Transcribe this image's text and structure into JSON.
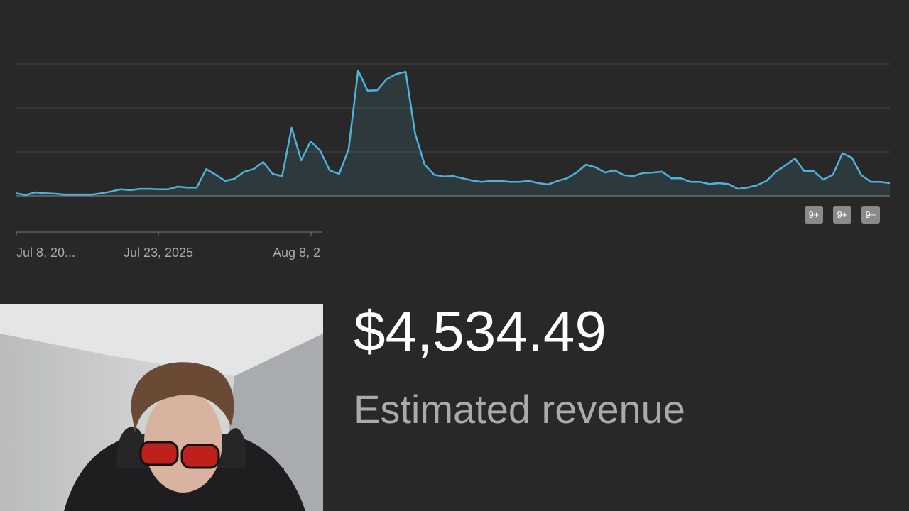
{
  "chart_data": {
    "type": "line",
    "color": "#4fb3d9",
    "values": [
      0.06,
      0.02,
      0.08,
      0.06,
      0.05,
      0.03,
      0.03,
      0.03,
      0.03,
      0.06,
      0.1,
      0.15,
      0.13,
      0.16,
      0.16,
      0.15,
      0.15,
      0.21,
      0.19,
      0.19,
      0.61,
      0.48,
      0.34,
      0.39,
      0.55,
      0.61,
      0.77,
      0.5,
      0.45,
      1.55,
      0.81,
      1.24,
      1.03,
      0.58,
      0.5,
      1.06,
      2.85,
      2.39,
      2.4,
      2.65,
      2.77,
      2.82,
      1.42,
      0.71,
      0.48,
      0.44,
      0.45,
      0.4,
      0.35,
      0.32,
      0.34,
      0.34,
      0.32,
      0.32,
      0.34,
      0.29,
      0.26,
      0.34,
      0.4,
      0.53,
      0.71,
      0.65,
      0.53,
      0.58,
      0.47,
      0.45,
      0.52,
      0.53,
      0.55,
      0.4,
      0.4,
      0.32,
      0.32,
      0.27,
      0.29,
      0.27,
      0.16,
      0.19,
      0.24,
      0.34,
      0.55,
      0.69,
      0.85,
      0.56,
      0.56,
      0.37,
      0.48,
      0.97,
      0.87,
      0.47,
      0.32,
      0.32,
      0.29
    ],
    "ylim": [
      0,
      3
    ],
    "grid_lines": [
      1,
      2,
      3
    ],
    "x_labels": [
      "Jul 8, 20...",
      "Jul 23, 2025",
      "Aug 8, 2"
    ],
    "badges": [
      "9+",
      "9+",
      "9+"
    ]
  },
  "metric": {
    "value": "$4,534.49",
    "label": "Estimated revenue"
  }
}
